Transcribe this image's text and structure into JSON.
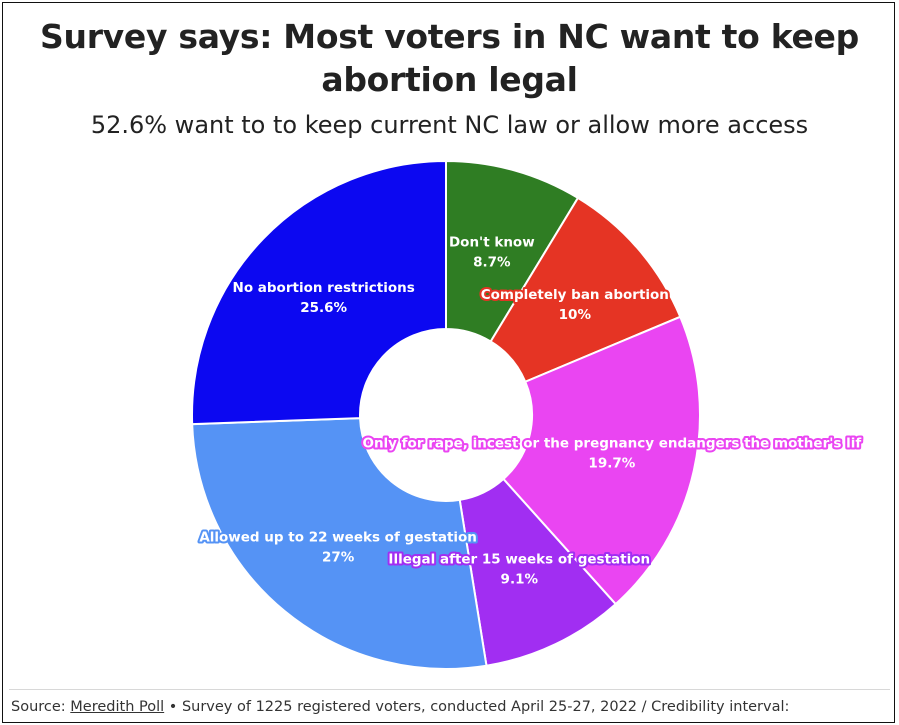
{
  "header": {
    "title_line1": "Survey says: Most voters in NC want to keep",
    "title_line2": "abortion legal",
    "subtitle": "52.6% want to to keep current NC law or allow more access"
  },
  "footer": {
    "source_prefix": "Source: ",
    "source_link": "Meredith Poll",
    "source_suffix": " • Survey of 1225 registered voters, conducted April 25-27, 2022 / Credibility interval:"
  },
  "chart_data": {
    "type": "pie",
    "donut": true,
    "title": "Survey says: Most voters in NC want to keep abortion legal",
    "subtitle": "52.6% want to to keep current NC law or allow more access",
    "slices": [
      {
        "label": "Don't know",
        "value_label": "8.7%",
        "value": 8.7,
        "color": "#2f7d23"
      },
      {
        "label": "Completely ban abortion",
        "value_label": "10%",
        "value": 10.0,
        "color": "#e53424"
      },
      {
        "label": "Only for rape, incest or the pregnancy endangers the mother's lif",
        "value_label": "19.7%",
        "value": 19.7,
        "color": "#ea45f2"
      },
      {
        "label": "Illegal after 15 weeks of gestation",
        "value_label": "9.1%",
        "value": 9.1,
        "color": "#a12ef2"
      },
      {
        "label": "Allowed up to 22 weeks of gestation",
        "value_label": "27%",
        "value": 27.0,
        "color": "#5593f5"
      },
      {
        "label": "No abortion restrictions",
        "value_label": "25.6%",
        "value": 25.6,
        "color": "#0c08f1"
      }
    ]
  }
}
